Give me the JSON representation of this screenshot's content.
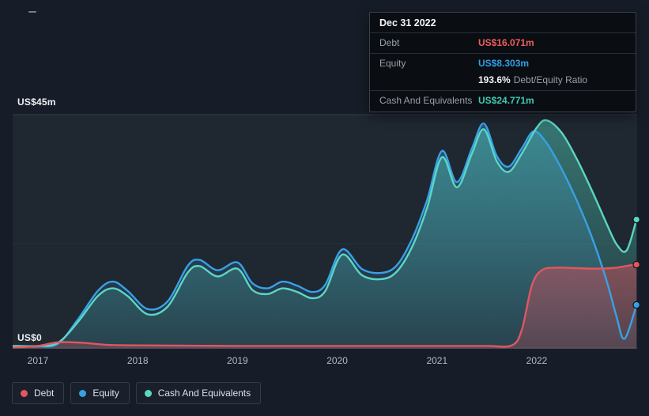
{
  "tooltip": {
    "date": "Dec 31 2022",
    "debt": {
      "label": "Debt",
      "value": "US$16.071m",
      "color": "#ef5d5d"
    },
    "equity": {
      "label": "Equity",
      "value": "US$8.303m",
      "color": "#2f9fe6"
    },
    "ratio": {
      "value": "193.6%",
      "label": "Debt/Equity Ratio"
    },
    "cash": {
      "label": "Cash And Equivalents",
      "value": "US$24.771m",
      "color": "#41c9b4"
    }
  },
  "legend": [
    {
      "label": "Debt",
      "color": "#e2565f"
    },
    {
      "label": "Equity",
      "color": "#38a1e6"
    },
    {
      "label": "Cash And Equivalents",
      "color": "#5bd6c3"
    }
  ],
  "chart_data": {
    "type": "area",
    "unit": "US$m",
    "x_ticks": [
      2017,
      2018,
      2019,
      2020,
      2021,
      2022
    ],
    "x_range": [
      2016.75,
      2023.0
    ],
    "ylim": [
      0,
      45
    ],
    "grid": true,
    "legend_position": "bottom-left",
    "y_axis": {
      "top_label": "US$45m",
      "bottom_label": "US$0",
      "max": 45,
      "min": 0
    },
    "series": [
      {
        "name": "Equity",
        "color": "#38a1e6",
        "fill_top": "rgba(62,130,190,0.45)",
        "fill_bottom": "rgba(62,130,190,0.10)",
        "marker": true,
        "final_value": 8.303,
        "points": [
          [
            2016.75,
            0.3
          ],
          [
            2017.0,
            0.3
          ],
          [
            2017.2,
            0.8
          ],
          [
            2017.4,
            5.5
          ],
          [
            2017.6,
            11.0
          ],
          [
            2017.75,
            12.8
          ],
          [
            2017.9,
            11.0
          ],
          [
            2018.1,
            7.5
          ],
          [
            2018.3,
            9.0
          ],
          [
            2018.5,
            15.8
          ],
          [
            2018.62,
            17.0
          ],
          [
            2018.8,
            15.0
          ],
          [
            2019.0,
            16.5
          ],
          [
            2019.15,
            12.5
          ],
          [
            2019.3,
            11.5
          ],
          [
            2019.45,
            12.8
          ],
          [
            2019.6,
            12.0
          ],
          [
            2019.75,
            10.8
          ],
          [
            2019.88,
            12.2
          ],
          [
            2020.05,
            19.0
          ],
          [
            2020.25,
            15.2
          ],
          [
            2020.45,
            14.5
          ],
          [
            2020.6,
            16.0
          ],
          [
            2020.75,
            21.0
          ],
          [
            2020.9,
            28.5
          ],
          [
            2021.05,
            38.0
          ],
          [
            2021.2,
            32.0
          ],
          [
            2021.35,
            38.5
          ],
          [
            2021.47,
            43.3
          ],
          [
            2021.6,
            37.0
          ],
          [
            2021.72,
            35.0
          ],
          [
            2021.85,
            38.5
          ],
          [
            2021.97,
            41.8
          ],
          [
            2022.1,
            39.5
          ],
          [
            2022.25,
            34.5
          ],
          [
            2022.4,
            28.5
          ],
          [
            2022.55,
            21.5
          ],
          [
            2022.7,
            13.0
          ],
          [
            2022.8,
            6.0
          ],
          [
            2022.88,
            1.8
          ],
          [
            2023.0,
            8.303
          ]
        ]
      },
      {
        "name": "Cash And Equivalents",
        "color": "#5bd6c3",
        "fill_top": "rgba(77,196,178,0.50)",
        "fill_bottom": "rgba(77,196,178,0.12)",
        "marker": true,
        "final_value": 24.771,
        "points": [
          [
            2016.75,
            0.4
          ],
          [
            2017.0,
            0.4
          ],
          [
            2017.2,
            1.0
          ],
          [
            2017.4,
            5.0
          ],
          [
            2017.6,
            10.0
          ],
          [
            2017.75,
            11.5
          ],
          [
            2017.9,
            10.0
          ],
          [
            2018.1,
            6.5
          ],
          [
            2018.3,
            8.0
          ],
          [
            2018.5,
            14.5
          ],
          [
            2018.62,
            15.8
          ],
          [
            2018.8,
            13.8
          ],
          [
            2019.0,
            15.3
          ],
          [
            2019.15,
            11.2
          ],
          [
            2019.3,
            10.4
          ],
          [
            2019.45,
            11.5
          ],
          [
            2019.6,
            10.8
          ],
          [
            2019.75,
            9.6
          ],
          [
            2019.88,
            11.0
          ],
          [
            2020.05,
            18.0
          ],
          [
            2020.25,
            14.0
          ],
          [
            2020.45,
            13.3
          ],
          [
            2020.6,
            14.8
          ],
          [
            2020.75,
            19.5
          ],
          [
            2020.9,
            27.0
          ],
          [
            2021.05,
            36.8
          ],
          [
            2021.2,
            31.0
          ],
          [
            2021.35,
            37.5
          ],
          [
            2021.47,
            42.2
          ],
          [
            2021.6,
            36.0
          ],
          [
            2021.72,
            34.0
          ],
          [
            2021.85,
            37.5
          ],
          [
            2022.0,
            42.5
          ],
          [
            2022.1,
            43.9
          ],
          [
            2022.25,
            41.5
          ],
          [
            2022.4,
            36.5
          ],
          [
            2022.55,
            30.5
          ],
          [
            2022.7,
            24.0
          ],
          [
            2022.8,
            20.0
          ],
          [
            2022.9,
            18.8
          ],
          [
            2023.0,
            24.771
          ]
        ]
      },
      {
        "name": "Debt",
        "color": "#e2565f",
        "fill_top": "rgba(198,80,94,0.55)",
        "fill_bottom": "rgba(198,80,94,0.28)",
        "marker": true,
        "final_value": 16.071,
        "points": [
          [
            2016.75,
            0.1
          ],
          [
            2017.0,
            0.4
          ],
          [
            2017.2,
            1.1
          ],
          [
            2017.45,
            1.0
          ],
          [
            2017.7,
            0.6
          ],
          [
            2018.0,
            0.5
          ],
          [
            2018.5,
            0.45
          ],
          [
            2019.0,
            0.4
          ],
          [
            2019.5,
            0.4
          ],
          [
            2020.0,
            0.4
          ],
          [
            2020.5,
            0.4
          ],
          [
            2021.0,
            0.4
          ],
          [
            2021.5,
            0.4
          ],
          [
            2021.75,
            0.5
          ],
          [
            2021.85,
            3.5
          ],
          [
            2021.95,
            12.0
          ],
          [
            2022.05,
            15.0
          ],
          [
            2022.2,
            15.5
          ],
          [
            2022.4,
            15.4
          ],
          [
            2022.6,
            15.3
          ],
          [
            2022.8,
            15.5
          ],
          [
            2022.92,
            15.9
          ],
          [
            2023.0,
            16.071
          ]
        ]
      }
    ]
  }
}
